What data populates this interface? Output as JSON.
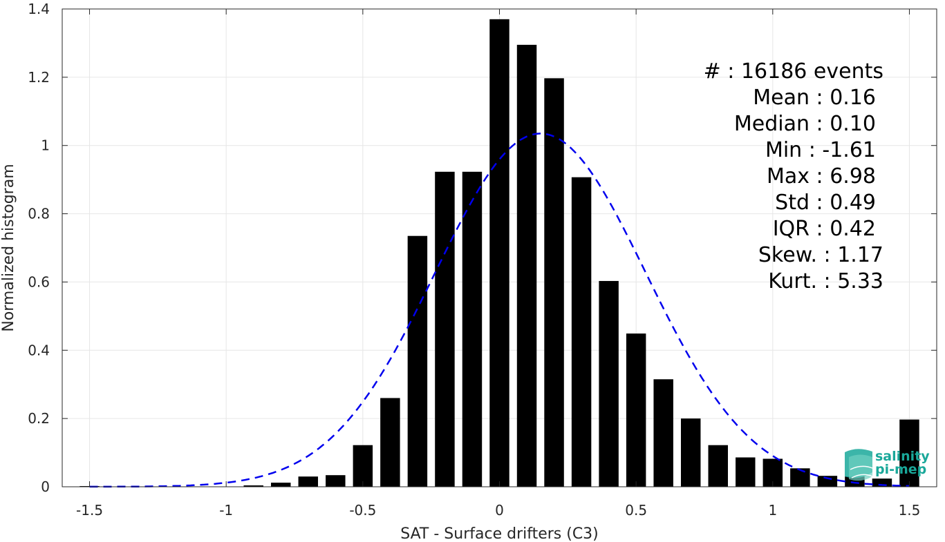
{
  "chart_data": {
    "type": "bar",
    "xlabel": "SAT - Surface drifters (C3)",
    "ylabel": "Normalized histogram",
    "xlim": [
      -1.6,
      1.6
    ],
    "ylim": [
      0,
      1.4
    ],
    "xticks": [
      "-1.5",
      "-1",
      "-0.5",
      "0",
      "0.5",
      "1",
      "1.5"
    ],
    "yticks": [
      "0",
      "0.2",
      "0.4",
      "0.6",
      "0.8",
      "1",
      "1.2",
      "1.4"
    ],
    "grid": true,
    "bar_color": "#000000",
    "bar_width": 0.072,
    "bars": [
      {
        "x": -1.5,
        "y": 0.002
      },
      {
        "x": -1.4,
        "y": 0.0
      },
      {
        "x": -1.3,
        "y": 0.0
      },
      {
        "x": -1.2,
        "y": 0.0
      },
      {
        "x": -1.1,
        "y": 0.0
      },
      {
        "x": -1.0,
        "y": 0.0
      },
      {
        "x": -0.9,
        "y": 0.004
      },
      {
        "x": -0.8,
        "y": 0.012
      },
      {
        "x": -0.7,
        "y": 0.03
      },
      {
        "x": -0.6,
        "y": 0.034
      },
      {
        "x": -0.5,
        "y": 0.122
      },
      {
        "x": -0.4,
        "y": 0.26
      },
      {
        "x": -0.3,
        "y": 0.735
      },
      {
        "x": -0.2,
        "y": 0.923
      },
      {
        "x": -0.1,
        "y": 0.923
      },
      {
        "x": 0.0,
        "y": 1.37
      },
      {
        "x": 0.1,
        "y": 1.295
      },
      {
        "x": 0.2,
        "y": 1.197
      },
      {
        "x": 0.3,
        "y": 0.907
      },
      {
        "x": 0.4,
        "y": 0.603
      },
      {
        "x": 0.5,
        "y": 0.449
      },
      {
        "x": 0.6,
        "y": 0.315
      },
      {
        "x": 0.7,
        "y": 0.2
      },
      {
        "x": 0.8,
        "y": 0.122
      },
      {
        "x": 0.9,
        "y": 0.086
      },
      {
        "x": 1.0,
        "y": 0.082
      },
      {
        "x": 1.1,
        "y": 0.054
      },
      {
        "x": 1.2,
        "y": 0.032
      },
      {
        "x": 1.3,
        "y": 0.03
      },
      {
        "x": 1.4,
        "y": 0.024
      },
      {
        "x": 1.5,
        "y": 0.197
      }
    ],
    "gaussian_fit": {
      "style": "dashed",
      "color": "#0000ee",
      "mean": 0.15,
      "std": 0.385,
      "peak": 1.035
    },
    "stats_lines": [
      "#  : 16186 events",
      "Mean : 0.16",
      "Median : 0.10",
      "Min : -1.61",
      "Max : 6.98",
      "Std : 0.49",
      "IQR : 0.42",
      "Skew. : 1.17",
      "Kurt. : 5.33"
    ]
  },
  "logo": {
    "line1": "salinity",
    "line2": "pi-mep",
    "color": "#1aa89a"
  }
}
